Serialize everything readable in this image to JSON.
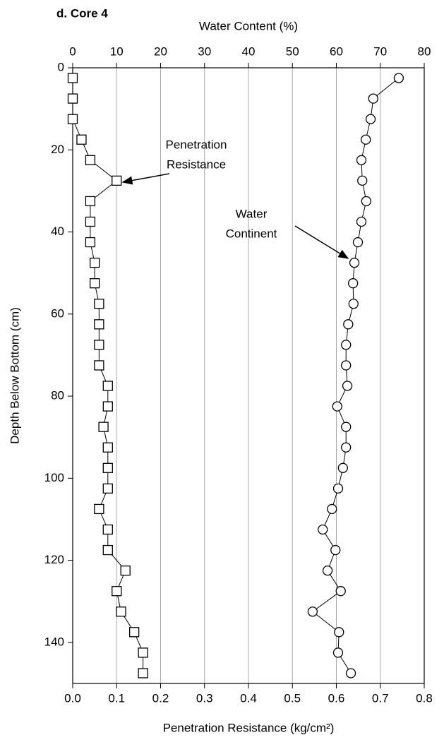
{
  "chart_data": {
    "type": "line",
    "title": "d. Core 4",
    "xlabel": "Penetration Resistance (kg/cm²)",
    "x2label": "Water Content (%)",
    "ylabel": "Depth Below Bottom (cm)",
    "y": [
      2.5,
      7.5,
      12.5,
      17.5,
      22.5,
      27.5,
      32.5,
      37.5,
      42.5,
      47.5,
      52.5,
      57.5,
      62.5,
      67.5,
      72.5,
      77.5,
      82.5,
      87.5,
      92.5,
      97.5,
      102.5,
      107.5,
      112.5,
      117.5,
      122.5,
      127.5,
      132.5,
      137.5,
      142.5,
      147.5
    ],
    "series": [
      {
        "color": "#000000",
        "marker": "square",
        "axis": "x",
        "values": [
          0,
          0,
          0,
          0.02,
          0.04,
          0.1,
          0.04,
          0.04,
          0.04,
          0.05,
          0.05,
          0.06,
          0.06,
          0.06,
          0.06,
          0.08,
          0.08,
          0.07,
          0.08,
          0.08,
          0.08,
          0.06,
          0.08,
          0.08,
          0.12,
          0.1,
          0.11,
          0.14,
          0.16,
          0.16
        ]
      },
      {
        "color": "#000000",
        "marker": "circle",
        "axis": "x2",
        "values": [
          74.2,
          68.4,
          67.8,
          66.7,
          65.7,
          65.9,
          66.8,
          65.7,
          64.9,
          64.1,
          63.8,
          63.9,
          62.7,
          62.2,
          62.2,
          62.5,
          60.2,
          62.2,
          62.2,
          61.5,
          60.4,
          59.0,
          56.9,
          59.8,
          58.0,
          61.0,
          54.6,
          60.6,
          60.4,
          63.3
        ]
      }
    ],
    "xlim": [
      0,
      0.8
    ],
    "xticks": [
      {
        "value": 0,
        "label": "0.0"
      },
      0.1,
      0.2,
      0.3,
      0.4,
      0.5,
      0.6,
      0.7,
      0.8
    ],
    "x2lim": [
      0,
      80
    ],
    "x2ticks": [
      0,
      10,
      20,
      30,
      40,
      50,
      60,
      70,
      80
    ],
    "ylim": [
      0,
      150
    ],
    "y_inverted": true,
    "yticks": [
      0,
      20,
      40,
      60,
      80,
      100,
      120,
      140
    ],
    "grid": "x",
    "annotations": [
      {
        "text": [
          "Penetration",
          "Resistance"
        ]
      },
      {
        "text": [
          "Water",
          "Continent"
        ]
      }
    ]
  }
}
